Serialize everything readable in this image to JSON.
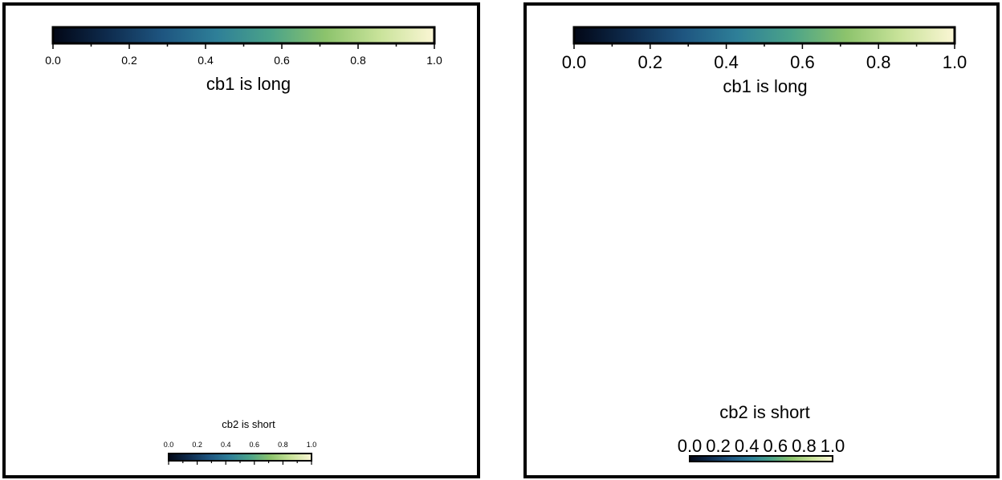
{
  "chart_data": [
    {
      "type": "colorbar",
      "panel": "left",
      "colormap": [
        "#020716",
        "#0e2b4d",
        "#1e5580",
        "#2e7f98",
        "#4ba389",
        "#8cc36c",
        "#c9e39a",
        "#fbf6d5"
      ],
      "colorbars": [
        {
          "id": "cb1",
          "label": "cb1 is long",
          "orientation": "horizontal",
          "label_position": "below",
          "range": [
            0.0,
            1.0
          ],
          "ticks": [
            0.0,
            0.2,
            0.4,
            0.6,
            0.8,
            1.0
          ],
          "tick_labels": [
            "0.0",
            "0.2",
            "0.4",
            "0.6",
            "0.8",
            "1.0"
          ],
          "minor_ticks": [
            0.1,
            0.3,
            0.5,
            0.7,
            0.9
          ]
        },
        {
          "id": "cb2",
          "label": "cb2 is short",
          "orientation": "horizontal",
          "label_position": "above",
          "range": [
            0.0,
            1.0
          ],
          "ticks": [
            0.0,
            0.2,
            0.4,
            0.6,
            0.8,
            1.0
          ],
          "tick_labels": [
            "0.0",
            "0.2",
            "0.4",
            "0.6",
            "0.8",
            "1.0"
          ],
          "minor_ticks": [
            0.1,
            0.3,
            0.5,
            0.7,
            0.9
          ]
        }
      ]
    },
    {
      "type": "colorbar",
      "panel": "right",
      "colormap": [
        "#020716",
        "#0e2b4d",
        "#1e5580",
        "#2e7f98",
        "#4ba389",
        "#8cc36c",
        "#c9e39a",
        "#fbf6d5"
      ],
      "colorbars": [
        {
          "id": "cb1",
          "label": "cb1 is long",
          "orientation": "horizontal",
          "label_position": "below",
          "range": [
            0.0,
            1.0
          ],
          "ticks": [
            0.0,
            0.2,
            0.4,
            0.6,
            0.8,
            1.0
          ],
          "tick_labels": [
            "0.0",
            "0.2",
            "0.4",
            "0.6",
            "0.8",
            "1.0"
          ],
          "minor_ticks": [
            0.1,
            0.3,
            0.5,
            0.7,
            0.9
          ]
        },
        {
          "id": "cb2",
          "label": "cb2 is short",
          "orientation": "horizontal",
          "label_position": "above",
          "range": [
            0.0,
            1.0
          ],
          "ticks": [
            0.0,
            0.2,
            0.4,
            0.6,
            0.8,
            1.0
          ],
          "tick_labels": [
            "0.0",
            "0.2",
            "0.4",
            "0.6",
            "0.8",
            "1.0"
          ],
          "minor_ticks": [
            0.1,
            0.3,
            0.5,
            0.7,
            0.9
          ]
        }
      ]
    }
  ]
}
